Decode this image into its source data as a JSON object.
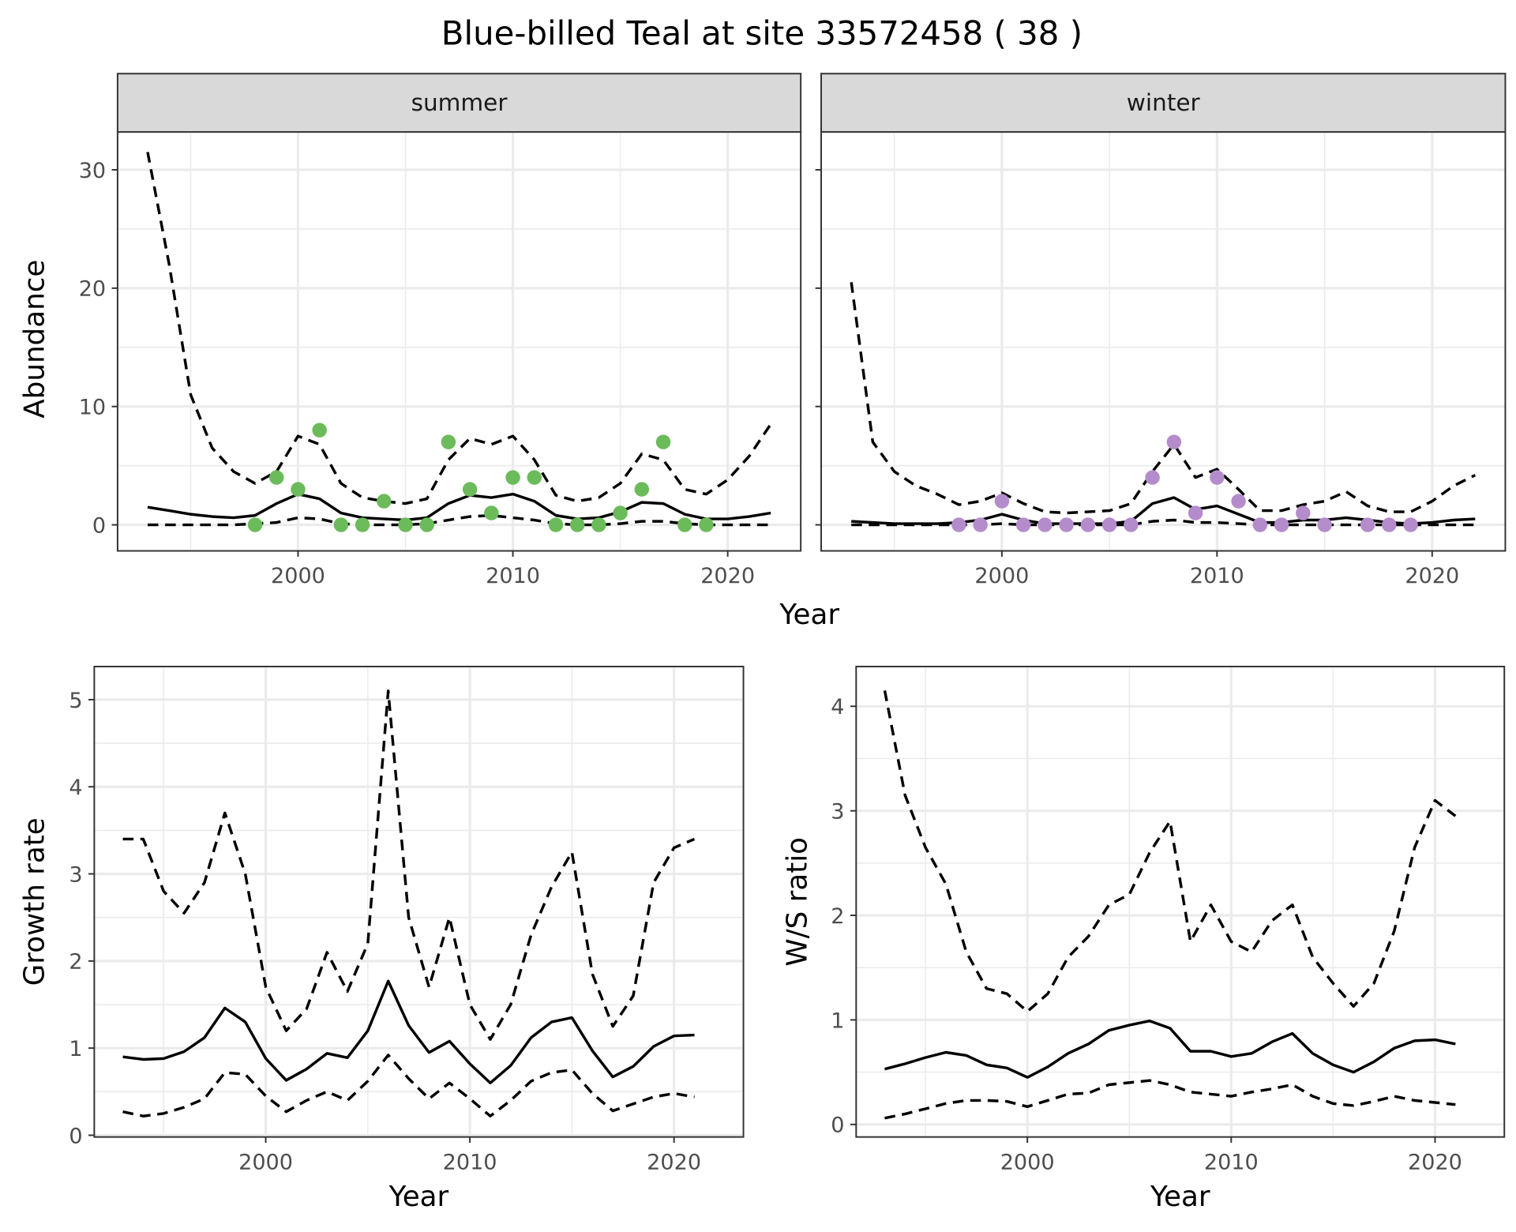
{
  "title": "Blue-billed Teal at site 33572458 ( 38 )",
  "colors": {
    "summer": "#6BBB5A",
    "winter": "#B48CCB",
    "line": "#000000"
  },
  "chart_data": [
    {
      "type": "line",
      "facet": "summer",
      "xlabel": "Year",
      "ylabel": "Abundance",
      "xlim": [
        1991.6,
        2023.4
      ],
      "ylim": [
        -2.2,
        33.2
      ],
      "xticks": [
        2000,
        2010,
        2020
      ],
      "yticks": [
        0,
        10,
        20,
        30
      ],
      "grid": true,
      "x": [
        1993,
        1994,
        1995,
        1996,
        1997,
        1998,
        1999,
        2000,
        2001,
        2002,
        2003,
        2004,
        2005,
        2006,
        2007,
        2008,
        2009,
        2010,
        2011,
        2012,
        2013,
        2014,
        2015,
        2016,
        2017,
        2018,
        2019,
        2020,
        2021,
        2022
      ],
      "series": [
        {
          "style": "dashed",
          "values": [
            31.5,
            22,
            11,
            6.5,
            4.5,
            3.5,
            4.5,
            7.5,
            6.8,
            3.5,
            2.3,
            2,
            1.8,
            2.2,
            5.5,
            7.3,
            6.8,
            7.5,
            5.5,
            2.5,
            2,
            2.3,
            3.5,
            6,
            5.5,
            3,
            2.6,
            3.8,
            5.8,
            8.5
          ]
        },
        {
          "style": "solid",
          "values": [
            1.5,
            1.2,
            0.9,
            0.7,
            0.6,
            0.8,
            1.8,
            2.6,
            2.2,
            1.0,
            0.6,
            0.5,
            0.4,
            0.6,
            1.8,
            2.5,
            2.3,
            2.6,
            2.0,
            0.8,
            0.5,
            0.6,
            1.1,
            1.9,
            1.8,
            0.9,
            0.5,
            0.5,
            0.7,
            1.0
          ]
        },
        {
          "style": "dashed",
          "values": [
            0,
            0,
            0,
            0,
            0,
            0.1,
            0.2,
            0.6,
            0.5,
            0.1,
            0,
            0,
            0,
            0.1,
            0.4,
            0.7,
            0.8,
            0.6,
            0.4,
            0.1,
            0,
            0,
            0.1,
            0.3,
            0.3,
            0.1,
            0,
            0,
            0,
            0
          ]
        }
      ],
      "points": {
        "x": [
          1998,
          1999,
          2000,
          2001,
          2002,
          2003,
          2004,
          2005,
          2006,
          2007,
          2008,
          2009,
          2010,
          2011,
          2012,
          2013,
          2014,
          2015,
          2016,
          2017,
          2018,
          2019
        ],
        "y": [
          0,
          4,
          3,
          8,
          0,
          0,
          2,
          0,
          0,
          7,
          3,
          1,
          4,
          4,
          0,
          0,
          0,
          1,
          3,
          7,
          0,
          0
        ]
      }
    },
    {
      "type": "line",
      "facet": "winter",
      "xlabel": "Year",
      "ylabel": "Abundance",
      "xlim": [
        1991.6,
        2023.4
      ],
      "ylim": [
        -2.2,
        33.2
      ],
      "xticks": [
        2000,
        2010,
        2020
      ],
      "yticks": [
        0,
        10,
        20,
        30
      ],
      "grid": true,
      "x": [
        1993,
        1994,
        1995,
        1996,
        1997,
        1998,
        1999,
        2000,
        2001,
        2002,
        2003,
        2004,
        2005,
        2006,
        2007,
        2008,
        2009,
        2010,
        2011,
        2012,
        2013,
        2014,
        2015,
        2016,
        2017,
        2018,
        2019,
        2020,
        2021,
        2022
      ],
      "series": [
        {
          "style": "dashed",
          "values": [
            20.5,
            7,
            4.5,
            3.3,
            2.6,
            1.7,
            2.0,
            2.7,
            1.8,
            1.1,
            1.0,
            1.1,
            1.2,
            1.8,
            4.5,
            6.8,
            4.0,
            4.7,
            3.0,
            1.2,
            1.2,
            1.7,
            2.0,
            2.8,
            1.6,
            1.1,
            1.1,
            2.0,
            3.3,
            4.2
          ]
        },
        {
          "style": "solid",
          "values": [
            0.3,
            0.2,
            0.1,
            0.1,
            0.1,
            0.2,
            0.4,
            0.9,
            0.4,
            0.1,
            0.1,
            0.1,
            0.1,
            0.3,
            1.8,
            2.3,
            1.3,
            1.6,
            0.9,
            0.2,
            0.2,
            0.4,
            0.4,
            0.6,
            0.4,
            0.2,
            0.1,
            0.2,
            0.4,
            0.5
          ]
        },
        {
          "style": "dashed",
          "values": [
            0,
            0,
            0,
            0,
            0,
            0,
            0,
            0.1,
            0,
            0,
            0,
            0,
            0,
            0,
            0.3,
            0.4,
            0.2,
            0.2,
            0.1,
            0,
            0,
            0,
            0,
            0,
            0,
            0,
            0,
            0,
            0,
            0
          ]
        }
      ],
      "points": {
        "x": [
          1998,
          1999,
          2000,
          2001,
          2002,
          2003,
          2004,
          2005,
          2006,
          2007,
          2008,
          2009,
          2010,
          2011,
          2012,
          2013,
          2014,
          2015,
          2017,
          2018,
          2019
        ],
        "y": [
          0,
          0,
          2,
          0,
          0,
          0,
          0,
          0,
          0,
          4,
          7,
          1,
          4,
          2,
          0,
          0,
          1,
          0,
          0,
          0,
          0
        ]
      }
    },
    {
      "type": "line",
      "xlabel": "Year",
      "ylabel": "Growth rate",
      "xlim": [
        1991.6,
        2023.4
      ],
      "ylim": [
        -0.02,
        5.38
      ],
      "xticks": [
        2000,
        2010,
        2020
      ],
      "yticks": [
        0,
        1,
        2,
        3,
        4,
        5
      ],
      "grid": true,
      "x": [
        1993,
        1994,
        1995,
        1996,
        1997,
        1998,
        1999,
        2000,
        2001,
        2002,
        2003,
        2004,
        2005,
        2006,
        2007,
        2008,
        2009,
        2010,
        2011,
        2012,
        2013,
        2014,
        2015,
        2016,
        2017,
        2018,
        2019,
        2020,
        2021
      ],
      "series": [
        {
          "style": "dashed",
          "values": [
            3.4,
            3.4,
            2.8,
            2.55,
            2.9,
            3.7,
            3.0,
            1.7,
            1.2,
            1.45,
            2.1,
            1.65,
            2.2,
            5.1,
            2.5,
            1.7,
            2.5,
            1.5,
            1.1,
            1.5,
            2.3,
            2.85,
            3.25,
            1.85,
            1.25,
            1.6,
            2.9,
            3.3,
            3.4
          ]
        },
        {
          "style": "solid",
          "values": [
            0.9,
            0.87,
            0.88,
            0.96,
            1.12,
            1.46,
            1.3,
            0.88,
            0.63,
            0.76,
            0.94,
            0.89,
            1.2,
            1.77,
            1.26,
            0.95,
            1.08,
            0.82,
            0.6,
            0.8,
            1.12,
            1.3,
            1.35,
            0.97,
            0.67,
            0.79,
            1.02,
            1.14,
            1.15
          ]
        },
        {
          "style": "dashed",
          "values": [
            0.27,
            0.22,
            0.25,
            0.32,
            0.42,
            0.72,
            0.7,
            0.45,
            0.27,
            0.4,
            0.5,
            0.4,
            0.62,
            0.92,
            0.65,
            0.42,
            0.6,
            0.42,
            0.22,
            0.4,
            0.62,
            0.72,
            0.75,
            0.48,
            0.28,
            0.36,
            0.44,
            0.48,
            0.44
          ]
        }
      ]
    },
    {
      "type": "line",
      "xlabel": "Year",
      "ylabel": "W/S ratio",
      "xlim": [
        1991.6,
        2023.4
      ],
      "ylim": [
        -0.12,
        4.38
      ],
      "xticks": [
        2000,
        2010,
        2020
      ],
      "yticks": [
        0,
        1,
        2,
        3,
        4
      ],
      "grid": true,
      "x": [
        1993,
        1994,
        1995,
        1996,
        1997,
        1998,
        1999,
        2000,
        2001,
        2002,
        2003,
        2004,
        2005,
        2006,
        2007,
        2008,
        2009,
        2010,
        2011,
        2012,
        2013,
        2014,
        2015,
        2016,
        2017,
        2018,
        2019,
        2020,
        2021
      ],
      "series": [
        {
          "style": "dashed",
          "values": [
            4.15,
            3.15,
            2.65,
            2.3,
            1.65,
            1.3,
            1.25,
            1.08,
            1.25,
            1.6,
            1.8,
            2.1,
            2.2,
            2.6,
            2.9,
            1.75,
            2.1,
            1.75,
            1.65,
            1.95,
            2.1,
            1.6,
            1.35,
            1.13,
            1.35,
            1.85,
            2.65,
            3.1,
            2.95
          ]
        },
        {
          "style": "solid",
          "values": [
            0.53,
            0.58,
            0.64,
            0.69,
            0.66,
            0.57,
            0.54,
            0.45,
            0.55,
            0.68,
            0.77,
            0.9,
            0.95,
            0.99,
            0.92,
            0.7,
            0.7,
            0.65,
            0.68,
            0.79,
            0.87,
            0.68,
            0.57,
            0.5,
            0.6,
            0.73,
            0.8,
            0.81,
            0.77
          ]
        },
        {
          "style": "dashed",
          "values": [
            0.06,
            0.1,
            0.15,
            0.2,
            0.23,
            0.23,
            0.22,
            0.17,
            0.23,
            0.29,
            0.3,
            0.38,
            0.4,
            0.42,
            0.38,
            0.31,
            0.29,
            0.27,
            0.31,
            0.34,
            0.38,
            0.27,
            0.2,
            0.18,
            0.22,
            0.27,
            0.23,
            0.21,
            0.19
          ]
        }
      ]
    }
  ]
}
